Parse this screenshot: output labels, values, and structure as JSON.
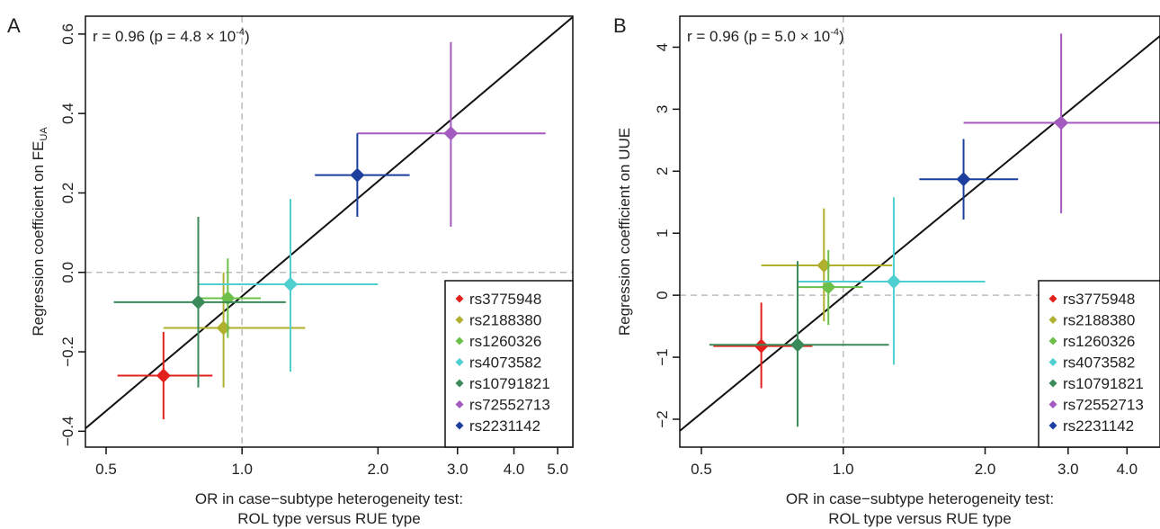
{
  "chart_data": [
    {
      "panel_label": "A",
      "type": "scatter",
      "x_scale": "log",
      "annotation": "r = 0.96 (p = 4.8 × 10",
      "annotation_exp": "-4",
      "annotation_close": ")",
      "xlabel_line1": "OR in case−subtype heterogeneity test:",
      "xlabel_line2": "ROL type versus RUE type",
      "ylabel_main": "Regression coefficient on FE",
      "ylabel_sub": "UA",
      "xlim": [
        0.45,
        5.4
      ],
      "ylim": [
        -0.44,
        0.645
      ],
      "xticks": [
        0.5,
        1.0,
        2.0,
        3.0,
        4.0,
        5.0
      ],
      "xtick_labels": [
        "0.5",
        "1.0",
        "2.0",
        "3.0",
        "4.0",
        "5.0"
      ],
      "yticks": [
        -0.4,
        -0.2,
        0.0,
        0.2,
        0.4,
        0.6
      ],
      "ytick_labels": [
        "−0.4",
        "−0.2",
        "0.0",
        "0.2",
        "0.4",
        "0.6"
      ],
      "ref_x": 1.0,
      "ref_y": 0.0,
      "fit_line": {
        "intercept": -0.06,
        "slope_per_log10": 0.96
      },
      "points": [
        {
          "name": "rs3775948",
          "x": 0.67,
          "y": -0.26,
          "x_lo": 0.53,
          "x_hi": 0.86,
          "y_lo": -0.37,
          "y_hi": -0.15,
          "color": "#e3211c"
        },
        {
          "name": "rs2188380",
          "x": 0.91,
          "y": -0.14,
          "x_lo": 0.67,
          "x_hi": 1.38,
          "y_lo": -0.29,
          "y_hi": 0.0,
          "color": "#b0b02e"
        },
        {
          "name": "rs1260326",
          "x": 0.93,
          "y": -0.065,
          "x_lo": 0.8,
          "x_hi": 1.1,
          "y_lo": -0.165,
          "y_hi": 0.035,
          "color": "#6cc04a"
        },
        {
          "name": "rs4073582",
          "x": 1.28,
          "y": -0.03,
          "x_lo": 0.8,
          "x_hi": 2.0,
          "y_lo": -0.25,
          "y_hi": 0.185,
          "color": "#4fcfcf"
        },
        {
          "name": "rs10791821",
          "x": 0.8,
          "y": -0.075,
          "x_lo": 0.52,
          "x_hi": 1.25,
          "y_lo": -0.29,
          "y_hi": 0.14,
          "color": "#3a8a5a"
        },
        {
          "name": "rs72552713",
          "x": 2.9,
          "y": 0.35,
          "x_lo": 1.8,
          "x_hi": 4.7,
          "y_lo": 0.115,
          "y_hi": 0.58,
          "color": "#a35bbf"
        },
        {
          "name": "rs2231142",
          "x": 1.8,
          "y": 0.245,
          "x_lo": 1.45,
          "x_hi": 2.35,
          "y_lo": 0.14,
          "y_hi": 0.35,
          "color": "#1c3f9e"
        }
      ],
      "legend": [
        "rs3775948",
        "rs2188380",
        "rs1260326",
        "rs4073582",
        "rs10791821",
        "rs72552713",
        "rs2231142"
      ],
      "legend_position": "bottom-right"
    },
    {
      "panel_label": "B",
      "type": "scatter",
      "x_scale": "log",
      "annotation": "r = 0.96 (p = 5.0 × 10",
      "annotation_exp": "-4",
      "annotation_close": ")",
      "xlabel_line1": "OR in case−subtype heterogeneity test:",
      "xlabel_line2": "ROL type versus RUE type",
      "ylabel_main": "Regression coefficient on UUE",
      "ylabel_sub": "",
      "xlim": [
        0.45,
        4.7
      ],
      "ylim": [
        -2.45,
        4.5
      ],
      "xticks": [
        0.5,
        1.0,
        2.0,
        3.0,
        4.0
      ],
      "xtick_labels": [
        "0.5",
        "1.0",
        "2.0",
        "3.0",
        "4.0"
      ],
      "yticks": [
        -2,
        -1,
        0,
        1,
        2,
        3,
        4
      ],
      "ytick_labels": [
        "−2",
        "−1",
        "0",
        "1",
        "2",
        "3",
        "4"
      ],
      "ref_x": 1.0,
      "ref_y": 0.0,
      "fit_line": {
        "intercept": -0.02,
        "slope_per_log10": 6.25
      },
      "points": [
        {
          "name": "rs3775948",
          "x": 0.67,
          "y": -0.82,
          "x_lo": 0.53,
          "x_hi": 0.86,
          "y_lo": -1.5,
          "y_hi": -0.12,
          "color": "#e3211c"
        },
        {
          "name": "rs2188380",
          "x": 0.91,
          "y": 0.48,
          "x_lo": 0.67,
          "x_hi": 1.27,
          "y_lo": -0.42,
          "y_hi": 1.4,
          "color": "#b0b02e"
        },
        {
          "name": "rs1260326",
          "x": 0.93,
          "y": 0.13,
          "x_lo": 0.8,
          "x_hi": 1.1,
          "y_lo": -0.48,
          "y_hi": 0.73,
          "color": "#6cc04a"
        },
        {
          "name": "rs4073582",
          "x": 1.28,
          "y": 0.22,
          "x_lo": 0.8,
          "x_hi": 2.0,
          "y_lo": -1.12,
          "y_hi": 1.58,
          "color": "#4fcfcf"
        },
        {
          "name": "rs10791821",
          "x": 0.8,
          "y": -0.8,
          "x_lo": 0.52,
          "x_hi": 1.25,
          "y_lo": -2.12,
          "y_hi": 0.55,
          "color": "#3a8a5a"
        },
        {
          "name": "rs72552713",
          "x": 2.9,
          "y": 2.78,
          "x_lo": 1.8,
          "x_hi": 4.7,
          "y_lo": 1.32,
          "y_hi": 4.22,
          "color": "#a35bbf"
        },
        {
          "name": "rs2231142",
          "x": 1.8,
          "y": 1.87,
          "x_lo": 1.45,
          "x_hi": 2.35,
          "y_lo": 1.22,
          "y_hi": 2.52,
          "color": "#1c3f9e"
        }
      ],
      "legend": [
        "rs3775948",
        "rs2188380",
        "rs1260326",
        "rs4073582",
        "rs10791821",
        "rs72552713",
        "rs2231142"
      ],
      "legend_position": "bottom-right"
    }
  ]
}
